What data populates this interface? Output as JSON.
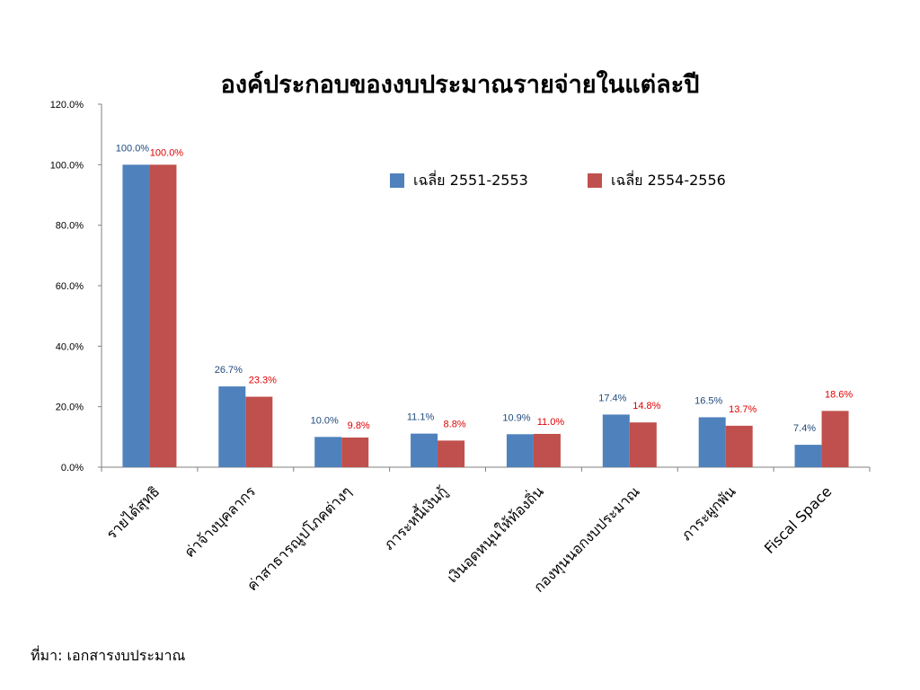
{
  "chart_data": {
    "type": "bar",
    "title": "องค์ประกอบของงบประมาณรายจ่ายในแต่ละปี",
    "categories": [
      "รายได้สุทธิ",
      "ค่าจ้างบุคลากร",
      "ค่าสาธารณูปโภคต่างๆ",
      "ภาระหนี้เงินกู้",
      "เงินอุดหนุนให้ท้องถิ่น",
      "กองทุนนอกงบประมาณ",
      "ภาระผูกพัน",
      "Fiscal Space"
    ],
    "series": [
      {
        "name": "เฉลี่ย 2551-2553",
        "color": "#4F81BD",
        "label_color": "#1F497D",
        "values": [
          100.0,
          26.7,
          10.0,
          11.1,
          10.9,
          17.4,
          16.5,
          7.4
        ],
        "labels": [
          "100.0%",
          "26.7%",
          "10.0%",
          "11.1%",
          "10.9%",
          "17.4%",
          "16.5%",
          "7.4%"
        ]
      },
      {
        "name": "เฉลี่ย 2554-2556",
        "color": "#C0504D",
        "label_color": "#E00000",
        "values": [
          100.0,
          23.3,
          9.8,
          8.8,
          11.0,
          14.8,
          13.7,
          18.6
        ],
        "labels": [
          "100.0%",
          "23.3%",
          "9.8%",
          "8.8%",
          "11.0%",
          "14.8%",
          "13.7%",
          "18.6%"
        ]
      }
    ],
    "ylim": [
      0,
      120
    ],
    "yticks": [
      "0.0%",
      "20.0%",
      "40.0%",
      "60.0%",
      "80.0%",
      "100.0%",
      "120.0%"
    ],
    "grid": false,
    "legend_position": "top-right",
    "source": "ที่มา: เอกสารงบประมาณ"
  }
}
